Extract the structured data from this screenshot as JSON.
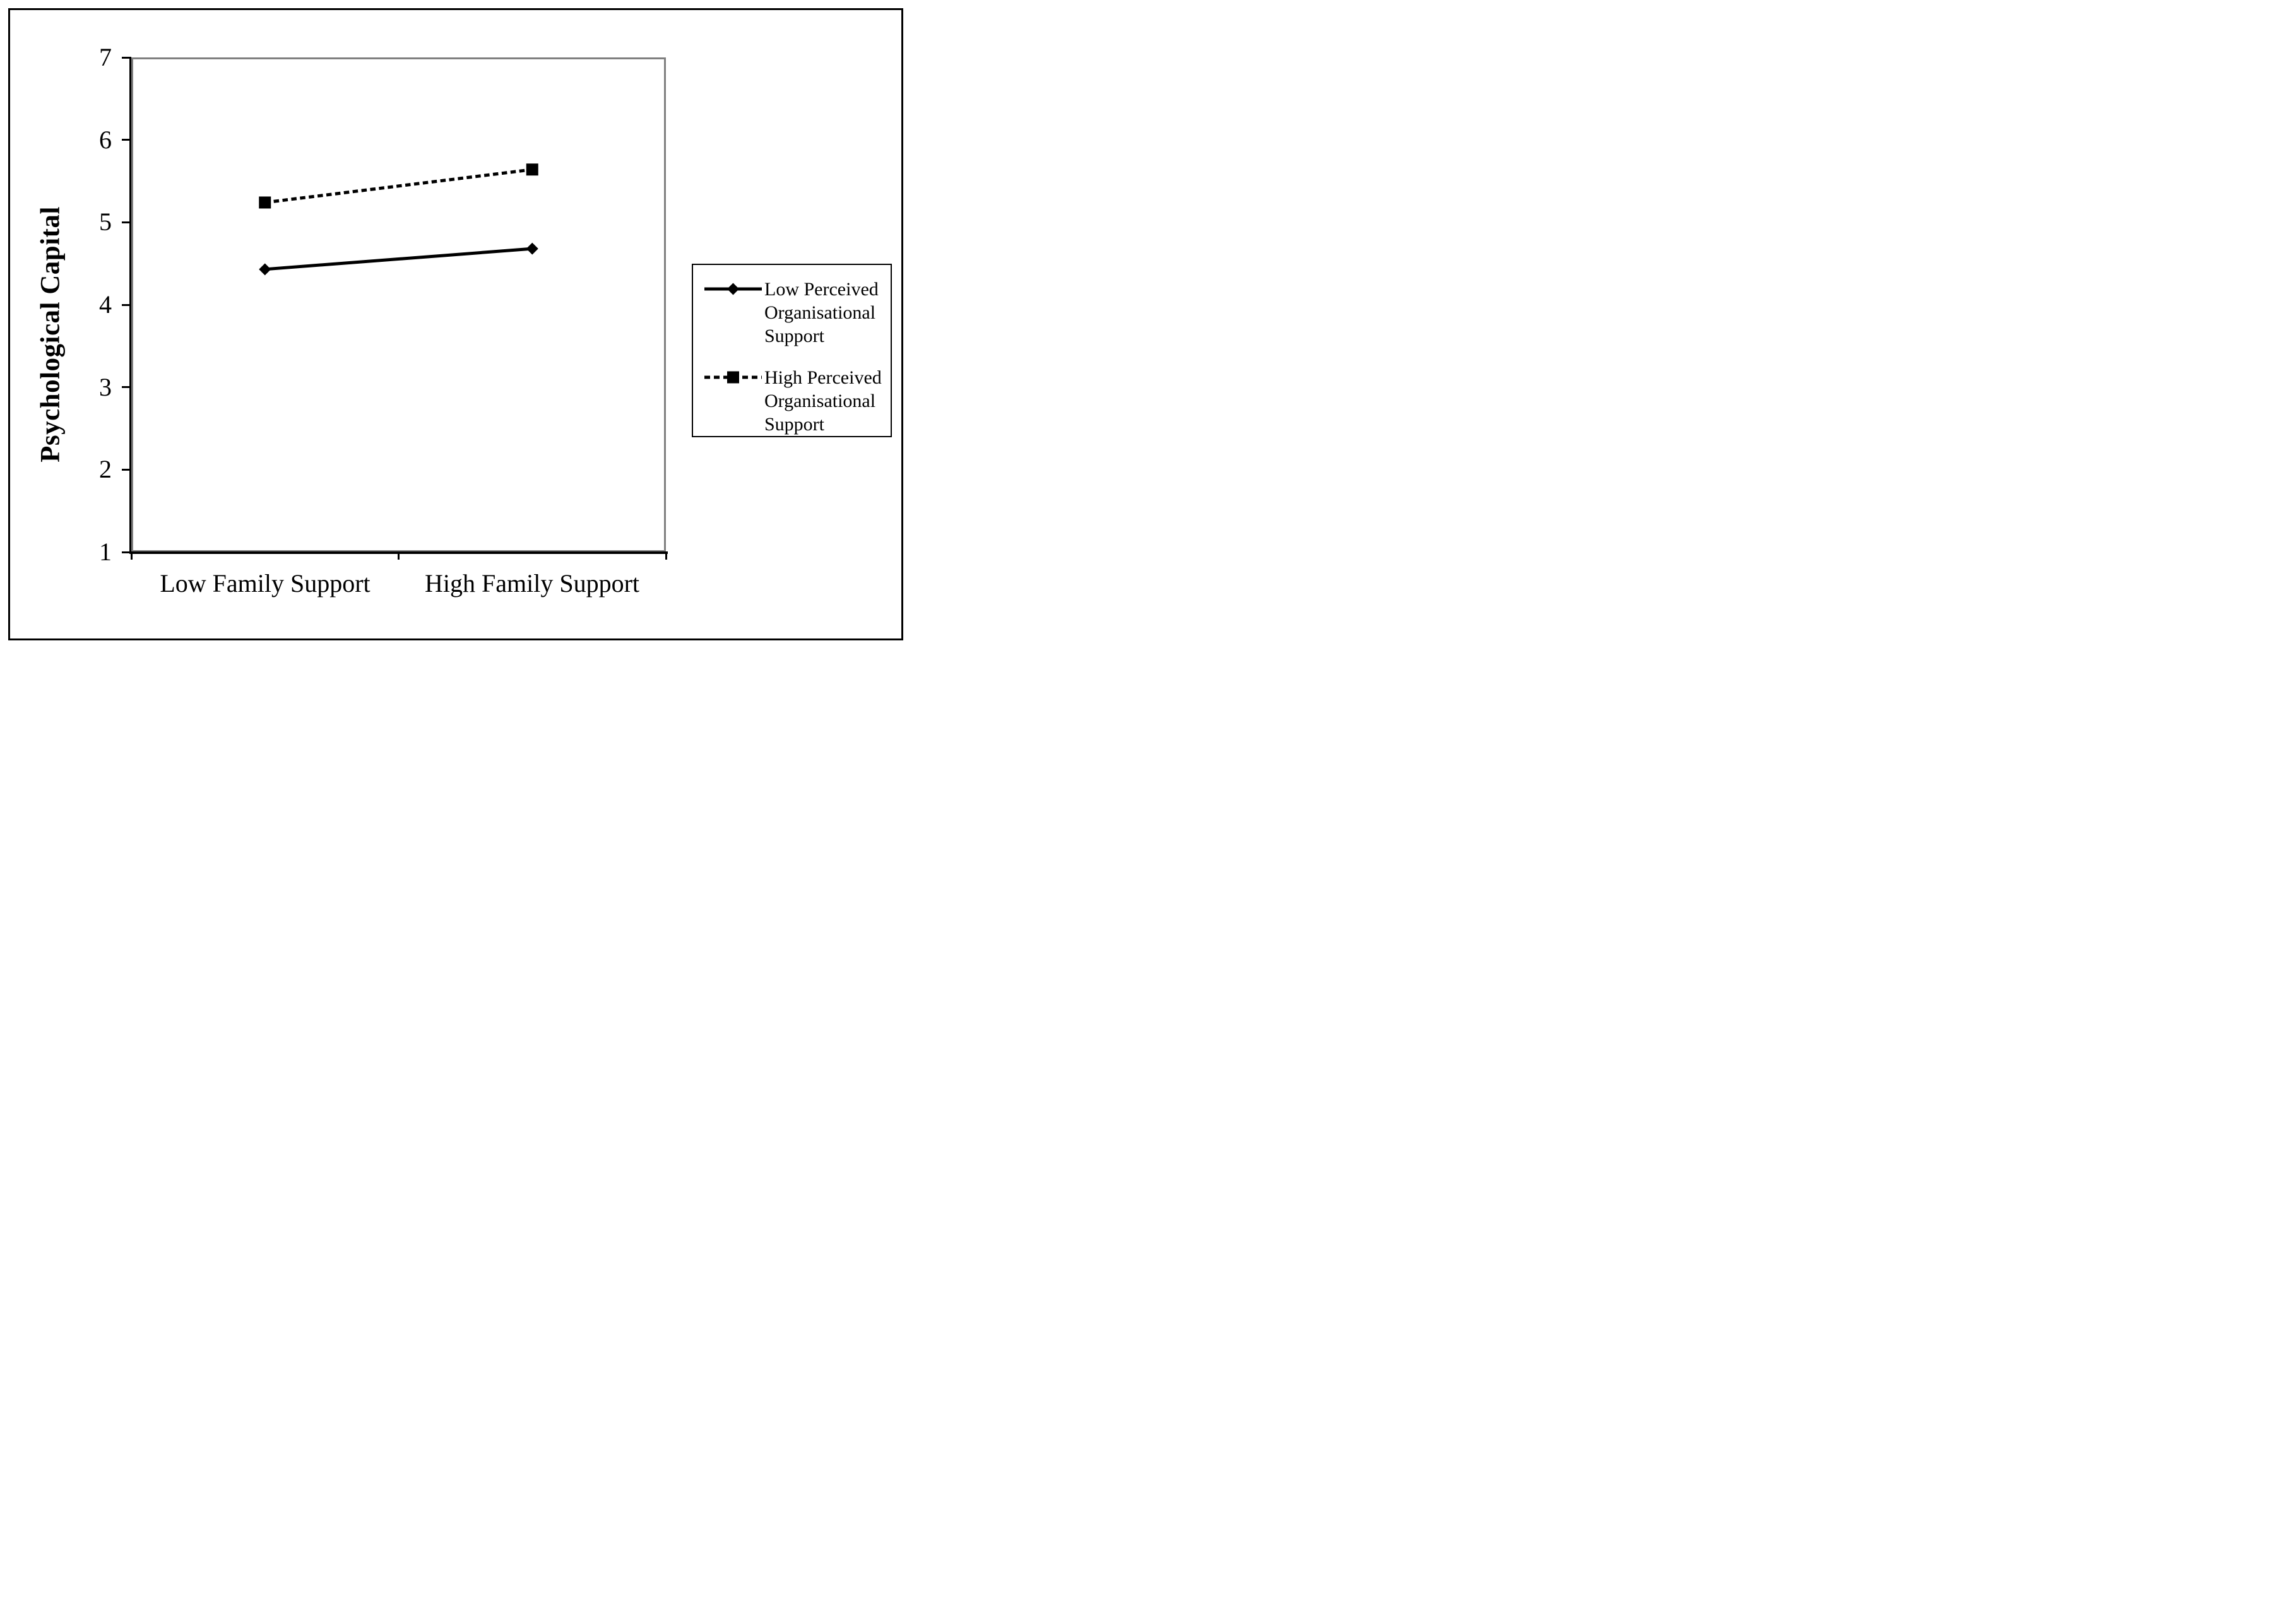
{
  "chart_data": {
    "type": "line",
    "title": "",
    "xlabel": "",
    "ylabel": "Psychological Capital",
    "categories": [
      "Low Family Support",
      "High Family Support"
    ],
    "series": [
      {
        "name": "Low Perceived Organisational Support",
        "marker": "diamond",
        "line_style": "solid",
        "values": [
          4.43,
          4.68
        ]
      },
      {
        "name": "High Perceived Organisational Support",
        "marker": "square",
        "line_style": "dashed",
        "values": [
          5.24,
          5.64
        ]
      }
    ],
    "ylim": [
      1,
      7
    ],
    "yticks": [
      7,
      6,
      5,
      4,
      3,
      2,
      1
    ],
    "grid": false,
    "legend_position": "right-outside"
  },
  "legend": {
    "entries": [
      {
        "marker": "diamond",
        "line_style": "solid",
        "lines": [
          "Low Perceived",
          "Organisational",
          "Support"
        ],
        "full_label": "Low Perceived Organisational Support"
      },
      {
        "marker": "square",
        "line_style": "dashed",
        "lines": [
          "High Perceived",
          "Organisational",
          "Support"
        ],
        "full_label": "High Perceived Organisational Support"
      }
    ]
  },
  "colors": {
    "series": "#000000",
    "plot_border_gray": "#7f7f7f",
    "figure_border": "#000000",
    "background": "#ffffff"
  }
}
